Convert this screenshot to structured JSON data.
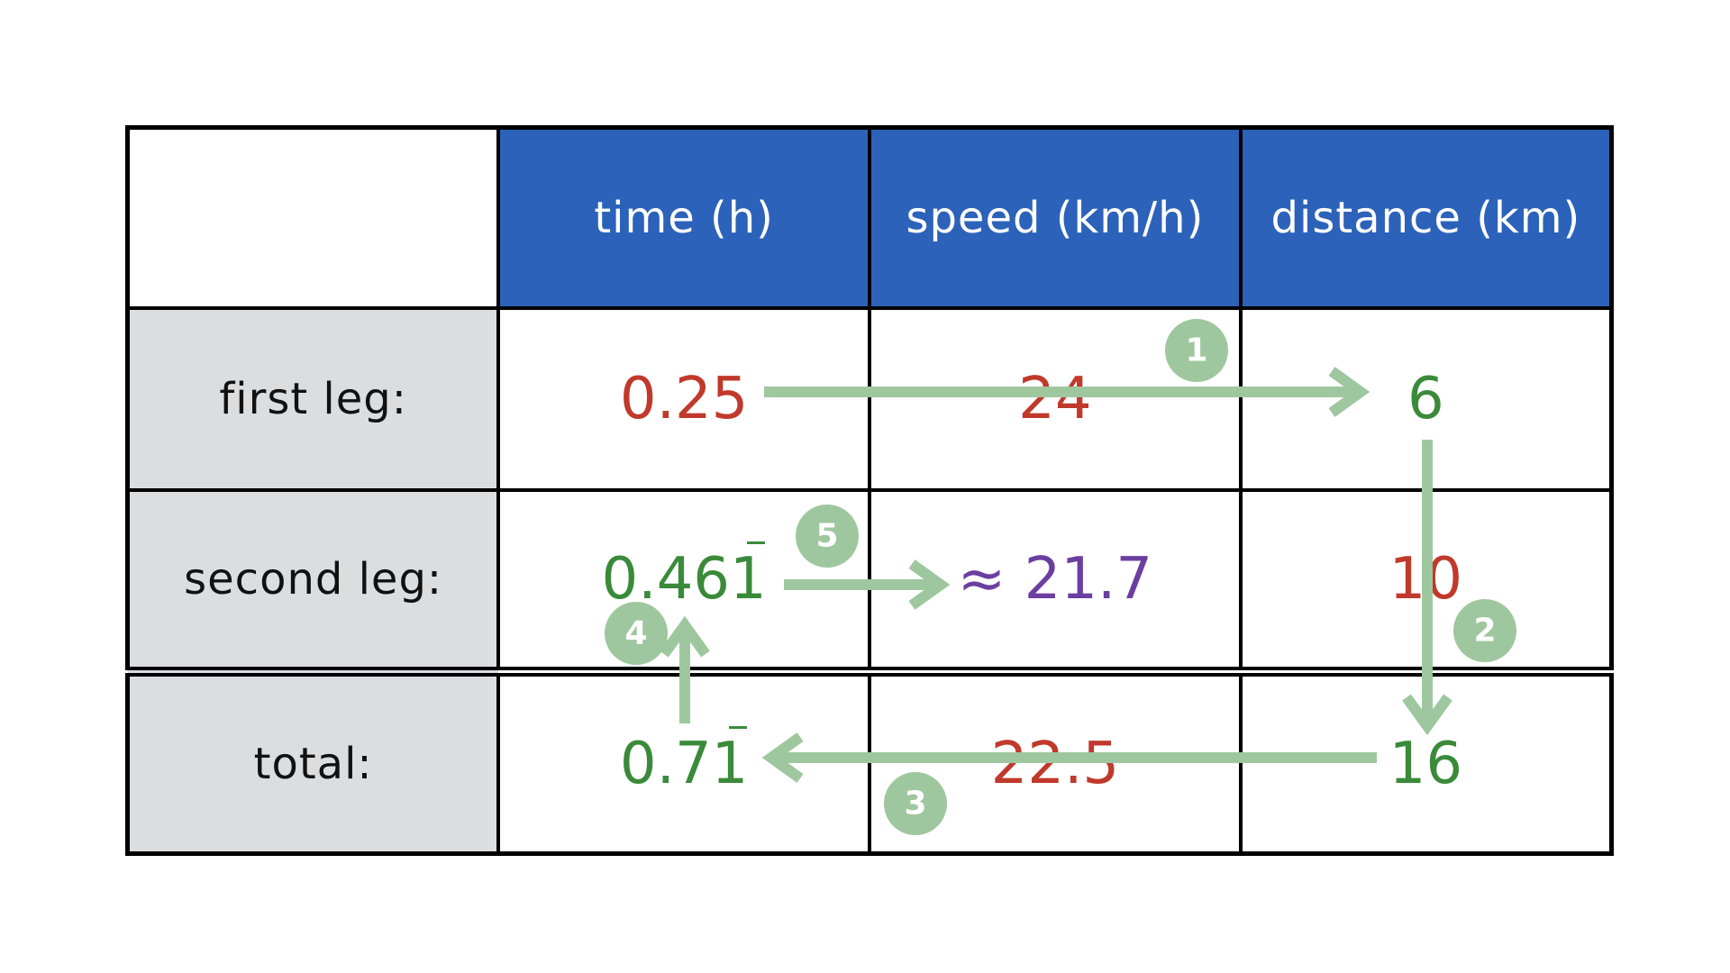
{
  "table": {
    "columns": [
      "time (h)",
      "speed (km/h)",
      "distance (km)"
    ],
    "rows": [
      {
        "label": "first leg:",
        "time": "0.25",
        "speed": "24",
        "distance": "6"
      },
      {
        "label": "second leg:",
        "time": "0.46",
        "time_repeat": "1",
        "speed": "≈ 21.7",
        "distance": "10"
      },
      {
        "label": "total:",
        "time": "0.7",
        "time_repeat": "1",
        "speed": "22.5",
        "distance": "16"
      }
    ]
  },
  "steps": [
    "1",
    "2",
    "3",
    "4",
    "5"
  ],
  "colors": {
    "header_bg": "#2c62b9",
    "header_text": "#ffffff",
    "label_bg": "#dcdddf",
    "given_value": "#c0392b",
    "derived_value": "#3a8a3a",
    "result_value": "#6b3fa0",
    "arrow": "#9fc79f"
  }
}
